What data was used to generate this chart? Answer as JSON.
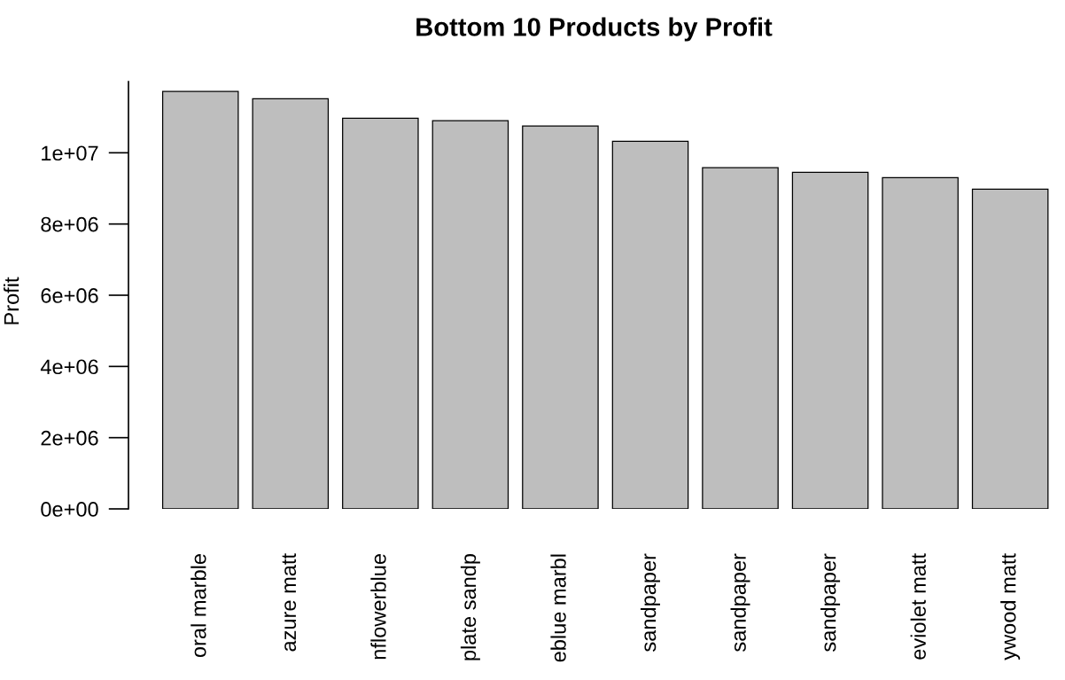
{
  "chart_data": {
    "type": "bar",
    "title": "Bottom 10 Products by Profit",
    "ylabel": "Profit",
    "categories": [
      "oral marble",
      "azure matt",
      "nflowerblue",
      "plate sandp",
      "eblue marbl",
      "sandpaper",
      "sandpaper",
      "sandpaper",
      "eviolet matt",
      "ywood matt"
    ],
    "values": [
      11720000,
      11520000,
      10970000,
      10900000,
      10750000,
      10320000,
      9580000,
      9450000,
      9300000,
      8980000
    ],
    "color": "#bebebe",
    "ylim": [
      0,
      12000000
    ],
    "yticks": [
      {
        "value": 0,
        "label": "0e+00"
      },
      {
        "value": 2000000,
        "label": "2e+06"
      },
      {
        "value": 4000000,
        "label": "4e+06"
      },
      {
        "value": 6000000,
        "label": "6e+06"
      },
      {
        "value": 8000000,
        "label": "8e+06"
      },
      {
        "value": 10000000,
        "label": "1e+07"
      }
    ],
    "grid": false
  }
}
